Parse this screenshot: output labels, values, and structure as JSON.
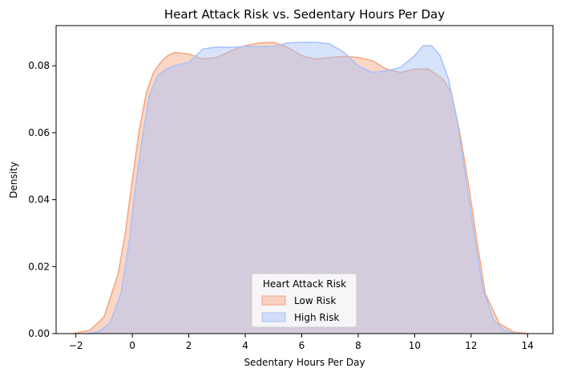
{
  "chart_data": {
    "type": "area",
    "title": "Heart Attack Risk vs. Sedentary Hours Per Day",
    "xlabel": "Sedentary Hours Per Day",
    "ylabel": "Density",
    "xlim": [
      -2.7,
      14.9
    ],
    "ylim": [
      0,
      0.092
    ],
    "xticks": [
      -2,
      0,
      2,
      4,
      6,
      8,
      10,
      12,
      14
    ],
    "yticks": [
      0.0,
      0.02,
      0.04,
      0.06,
      0.08
    ],
    "ytick_labels": [
      "0.00",
      "0.02",
      "0.04",
      "0.06",
      "0.08"
    ],
    "grid": false,
    "legend": {
      "title": "Heart Attack Risk",
      "placement": "lower-center"
    },
    "series": [
      {
        "name": "Low Risk",
        "color": "#f4a582",
        "x": [
          -2.1,
          -1.5,
          -1.0,
          -0.5,
          -0.25,
          0.0,
          0.25,
          0.5,
          0.75,
          1.0,
          1.25,
          1.5,
          2.0,
          2.5,
          3.0,
          3.5,
          4.0,
          4.5,
          5.0,
          5.5,
          6.0,
          6.5,
          7.0,
          7.5,
          8.0,
          8.5,
          9.0,
          9.5,
          10.0,
          10.5,
          11.0,
          11.3,
          11.6,
          11.9,
          12.2,
          12.5,
          13.0,
          13.5,
          14.0
        ],
        "y": [
          0.0,
          0.001,
          0.005,
          0.018,
          0.03,
          0.046,
          0.061,
          0.072,
          0.078,
          0.081,
          0.083,
          0.084,
          0.0835,
          0.082,
          0.0825,
          0.0845,
          0.086,
          0.0868,
          0.087,
          0.0855,
          0.083,
          0.082,
          0.0825,
          0.0828,
          0.0825,
          0.0815,
          0.079,
          0.078,
          0.079,
          0.079,
          0.076,
          0.072,
          0.06,
          0.045,
          0.028,
          0.012,
          0.003,
          0.0005,
          0.0
        ]
      },
      {
        "name": "High Risk",
        "color": "#a6c2f7",
        "x": [
          -1.6,
          -1.2,
          -0.8,
          -0.4,
          -0.1,
          0.1,
          0.35,
          0.6,
          0.9,
          1.2,
          1.5,
          2.0,
          2.5,
          3.0,
          3.5,
          4.0,
          4.5,
          5.0,
          5.5,
          6.0,
          6.5,
          7.0,
          7.5,
          8.0,
          8.5,
          9.0,
          9.5,
          10.0,
          10.3,
          10.6,
          10.9,
          11.2,
          11.5,
          11.8,
          12.1,
          12.4,
          12.8,
          13.2,
          13.6
        ],
        "y": [
          0.0,
          0.0006,
          0.003,
          0.012,
          0.028,
          0.043,
          0.058,
          0.071,
          0.077,
          0.079,
          0.08,
          0.081,
          0.085,
          0.0856,
          0.0855,
          0.0858,
          0.0857,
          0.0858,
          0.0868,
          0.087,
          0.087,
          0.0865,
          0.084,
          0.08,
          0.078,
          0.0785,
          0.0795,
          0.083,
          0.086,
          0.086,
          0.083,
          0.076,
          0.064,
          0.047,
          0.03,
          0.014,
          0.004,
          0.0008,
          0.0
        ]
      }
    ]
  }
}
